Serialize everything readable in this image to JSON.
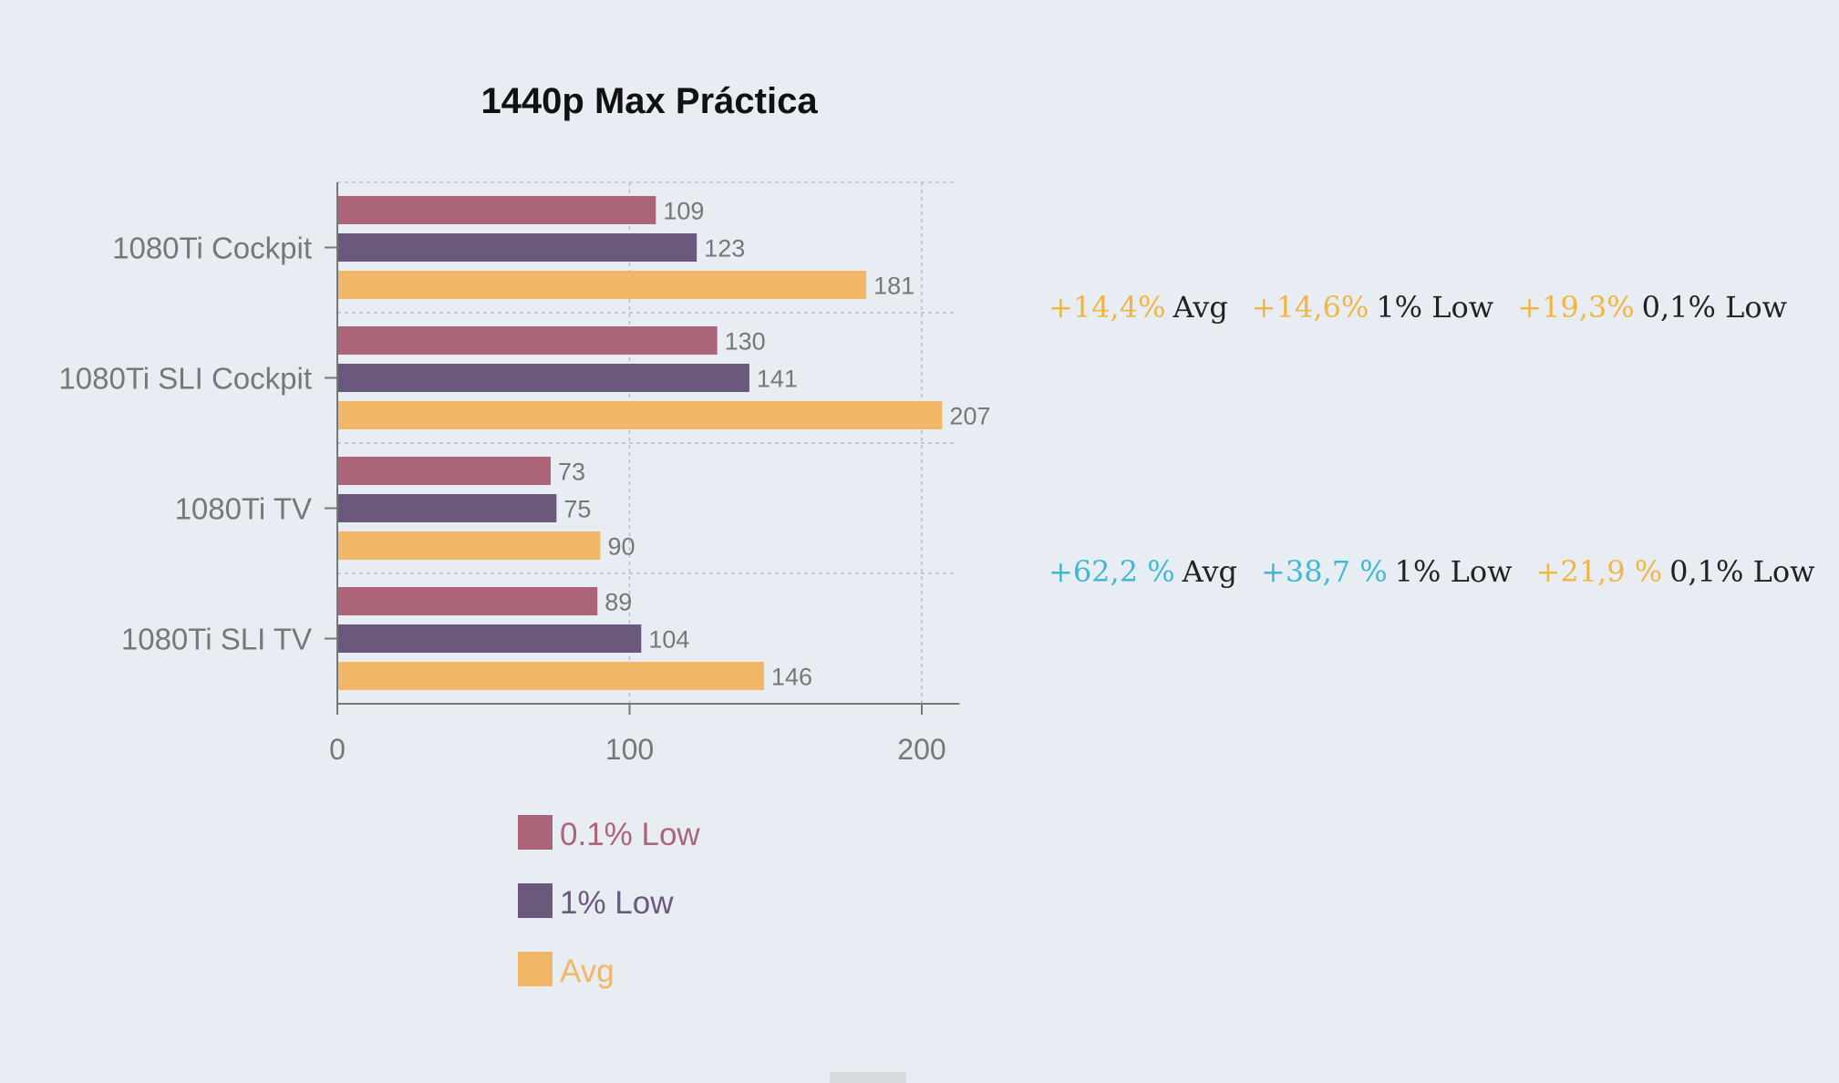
{
  "chart_data": {
    "type": "bar",
    "orientation": "horizontal",
    "title": "1440p Max Práctica",
    "xlabel": "",
    "ylabel": "",
    "categories": [
      "1080Ti Cockpit",
      "1080Ti SLI Cockpit",
      "1080Ti TV",
      "1080Ti SLI TV"
    ],
    "series": [
      {
        "name": "0.1% Low",
        "color": "#ac6478",
        "values": [
          109,
          130,
          73,
          89
        ]
      },
      {
        "name": "1% Low",
        "color": "#6a587d",
        "values": [
          123,
          141,
          75,
          104
        ]
      },
      {
        "name": "Avg",
        "color": "#f2b766",
        "values": [
          181,
          207,
          90,
          146
        ]
      }
    ],
    "xlim": [
      0,
      212
    ],
    "xticks": [
      0,
      100,
      200
    ],
    "grid": true,
    "legend_position": "bottom",
    "data_labels": true
  },
  "comparisons": [
    {
      "items": [
        {
          "pct": "+14,4%",
          "metric": "Avg",
          "color": "#f2b542"
        },
        {
          "pct": "+14,6%",
          "metric": "1% Low",
          "color": "#f2b542"
        },
        {
          "pct": "+19,3%",
          "metric": "0,1% Low",
          "color": "#f2b542"
        }
      ]
    },
    {
      "items": [
        {
          "pct": "+62,2 %",
          "metric": "Avg",
          "color": "#3fb8d4"
        },
        {
          "pct": "+38,7 %",
          "metric": "1% Low",
          "color": "#3fb8d4"
        },
        {
          "pct": "+21,9 %",
          "metric": "0,1% Low",
          "color": "#f2b542"
        }
      ]
    }
  ]
}
